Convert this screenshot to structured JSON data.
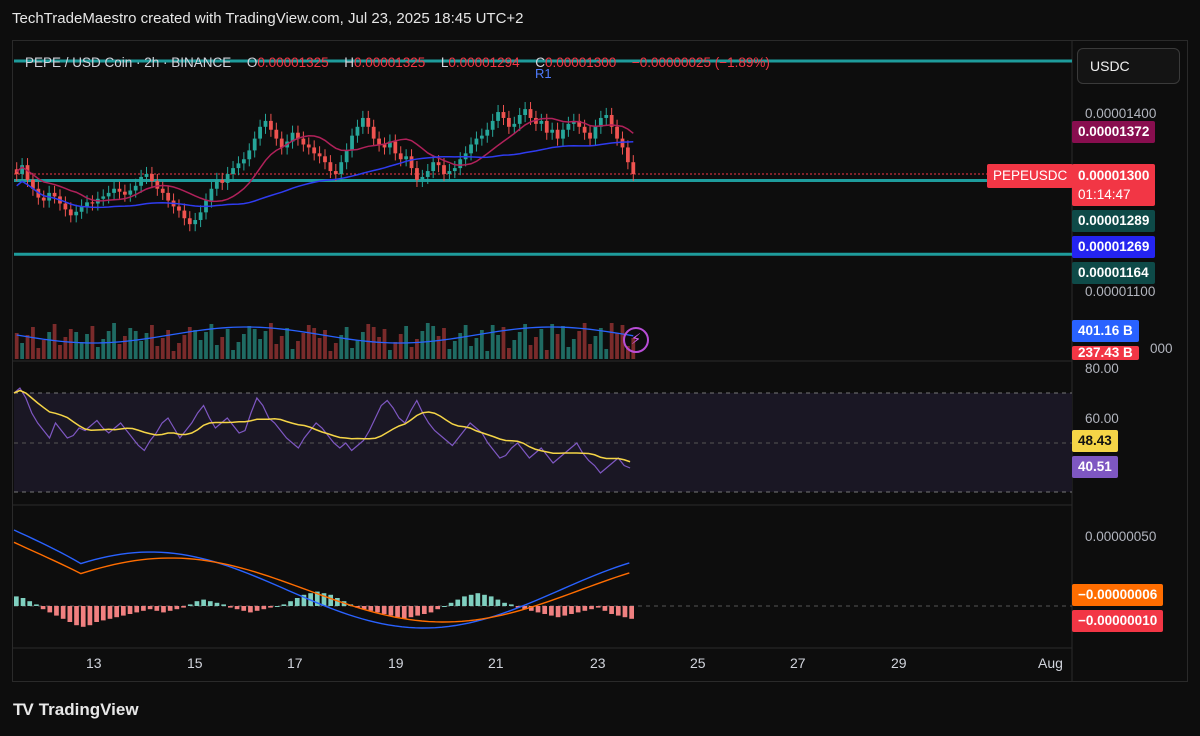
{
  "credit": "TechTradeMaestro created with TradingView.com, Jul 23, 2025 18:45 UTC+2",
  "legend": {
    "symbol": "PEPE / USD Coin · 2h · BINANCE",
    "o_label": "O",
    "o_value": "0.00001325",
    "h_label": "H",
    "h_value": "0.00001325",
    "l_label": "L",
    "l_value": "0.00001294",
    "c_label": "C",
    "c_value": "0.00001300",
    "change": "−0.00000025 (−1.89%)"
  },
  "currency_button": "USDC",
  "r1_label": "R1",
  "symbol_tag": "PEPEUSDC",
  "price_axis": {
    "tick_top": "0.00001400",
    "tick_bottom": "0.00001100",
    "tick_cut": "000"
  },
  "badges": {
    "ma_slow": "0.00001372",
    "last_price": "0.00001300",
    "countdown": "01:14:47",
    "level_upper": "0.00001289",
    "ma_fast": "0.00001269",
    "level_lower": "0.00001164",
    "vol_ma": "401.16 B",
    "volume": "237.43 B"
  },
  "rsi_axis": {
    "tick_80": "80.00",
    "tick_60": "60.00",
    "rsi_ma": "48.43",
    "rsi": "40.51"
  },
  "macd_axis": {
    "tick": "0.00000050",
    "signal": "−0.00000006",
    "macd": "−0.00000010"
  },
  "dates": [
    "13",
    "15",
    "17",
    "19",
    "21",
    "23",
    "25",
    "27",
    "29",
    "Aug"
  ],
  "footer": "TradingView",
  "colors": {
    "up": "#26a69a",
    "down": "#ef5350",
    "ma_slow": "#b0215a",
    "ma_fast": "#2f3cf0",
    "level": "#1e9c9c",
    "rsi": "#7e57c2",
    "rsi_ma": "#f5d547",
    "macd": "#2962ff",
    "signal": "#ff6d00"
  },
  "chart_data": {
    "type": "candlestick",
    "symbol": "PEPE / USD Coin",
    "interval": "2h",
    "exchange": "BINANCE",
    "ylim": [
      1.08e-05,
      1.44e-05
    ],
    "horizontal_levels": [
      1.289e-05,
      1.164e-05
    ],
    "last_close": 1.3e-05,
    "ma_slow_last": 1.372e-05,
    "ma_fast_last": 1.269e-05,
    "closes": [
      1.3e-05,
      1.315e-05,
      1.29e-05,
      1.275e-05,
      1.26e-05,
      1.255e-05,
      1.268e-05,
      1.262e-05,
      1.25e-05,
      1.24e-05,
      1.23e-05,
      1.236e-05,
      1.245e-05,
      1.252e-05,
      1.25e-05,
      1.258e-05,
      1.262e-05,
      1.268e-05,
      1.275e-05,
      1.27e-05,
      1.265e-05,
      1.272e-05,
      1.28e-05,
      1.295e-05,
      1.3e-05,
      1.288e-05,
      1.275e-05,
      1.268e-05,
      1.255e-05,
      1.245e-05,
      1.238e-05,
      1.225e-05,
      1.215e-05,
      1.222e-05,
      1.235e-05,
      1.255e-05,
      1.275e-05,
      1.29e-05,
      1.285e-05,
      1.3e-05,
      1.31e-05,
      1.318e-05,
      1.325e-05,
      1.34e-05,
      1.36e-05,
      1.38e-05,
      1.39e-05,
      1.375e-05,
      1.36e-05,
      1.345e-05,
      1.355e-05,
      1.37e-05,
      1.36e-05,
      1.35e-05,
      1.345e-05,
      1.335e-05,
      1.33e-05,
      1.32e-05,
      1.305e-05,
      1.3e-05,
      1.32e-05,
      1.34e-05,
      1.365e-05,
      1.38e-05,
      1.395e-05,
      1.38e-05,
      1.36e-05,
      1.35e-05,
      1.345e-05,
      1.355e-05,
      1.335e-05,
      1.325e-05,
      1.33e-05,
      1.31e-05,
      1.29e-05,
      1.295e-05,
      1.305e-05,
      1.32e-05,
      1.315e-05,
      1.3e-05,
      1.305e-05,
      1.31e-05,
      1.325e-05,
      1.335e-05,
      1.35e-05,
      1.36e-05,
      1.365e-05,
      1.375e-05,
      1.39e-05,
      1.405e-05,
      1.395e-05,
      1.38e-05,
      1.385e-05,
      1.4e-05,
      1.41e-05,
      1.395e-05,
      1.385e-05,
      1.39e-05,
      1.37e-05,
      1.375e-05,
      1.36e-05,
      1.375e-05,
      1.385e-05,
      1.39e-05,
      1.38e-05,
      1.37e-05,
      1.36e-05,
      1.38e-05,
      1.395e-05,
      1.4e-05,
      1.38e-05,
      1.36e-05,
      1.345e-05,
      1.32e-05,
      1.3e-05
    ],
    "rsi": [
      70,
      72,
      68,
      62,
      58,
      55,
      52,
      58,
      55,
      52,
      53,
      56,
      55,
      57,
      59,
      56,
      54,
      56,
      58,
      55,
      52,
      49,
      47,
      51,
      54,
      58,
      60,
      56,
      52,
      55,
      58,
      62,
      65,
      60,
      56,
      58,
      60,
      57,
      54,
      55,
      62,
      68,
      65,
      60,
      58,
      55,
      52,
      50,
      48,
      52,
      55,
      58,
      56,
      53,
      50,
      48,
      50,
      47,
      49,
      51,
      55,
      60,
      65,
      67,
      64,
      60,
      58,
      63,
      67,
      62,
      58,
      55,
      53,
      51,
      49,
      52,
      55,
      58,
      56,
      54,
      50,
      47,
      44,
      45,
      48,
      50,
      47,
      44,
      46,
      48,
      45,
      42,
      44,
      46,
      48,
      50,
      46,
      43,
      41,
      38,
      40,
      42,
      44,
      41,
      40
    ],
    "macd_hist": [
      6,
      5,
      3,
      1,
      -2,
      -4,
      -6,
      -8,
      -10,
      -12,
      -13,
      -12,
      -10,
      -9,
      -8,
      -7,
      -6,
      -5,
      -4,
      -3,
      -2,
      -3,
      -4,
      -3,
      -2,
      -1,
      1,
      3,
      4,
      3,
      2,
      1,
      -1,
      -2,
      -3,
      -4,
      -3,
      -2,
      -1,
      0,
      1,
      3,
      5,
      7,
      8,
      9,
      8,
      7,
      5,
      3,
      1,
      -1,
      -2,
      -3,
      -4,
      -5,
      -6,
      -7,
      -8,
      -7,
      -6,
      -5,
      -4,
      -2,
      0,
      2,
      4,
      6,
      7,
      8,
      7,
      6,
      4,
      2,
      1,
      -1,
      -2,
      -3,
      -4,
      -5,
      -6,
      -7,
      -6,
      -5,
      -4,
      -3,
      -2,
      -1,
      -3,
      -5,
      -6,
      -7,
      -8
    ]
  }
}
